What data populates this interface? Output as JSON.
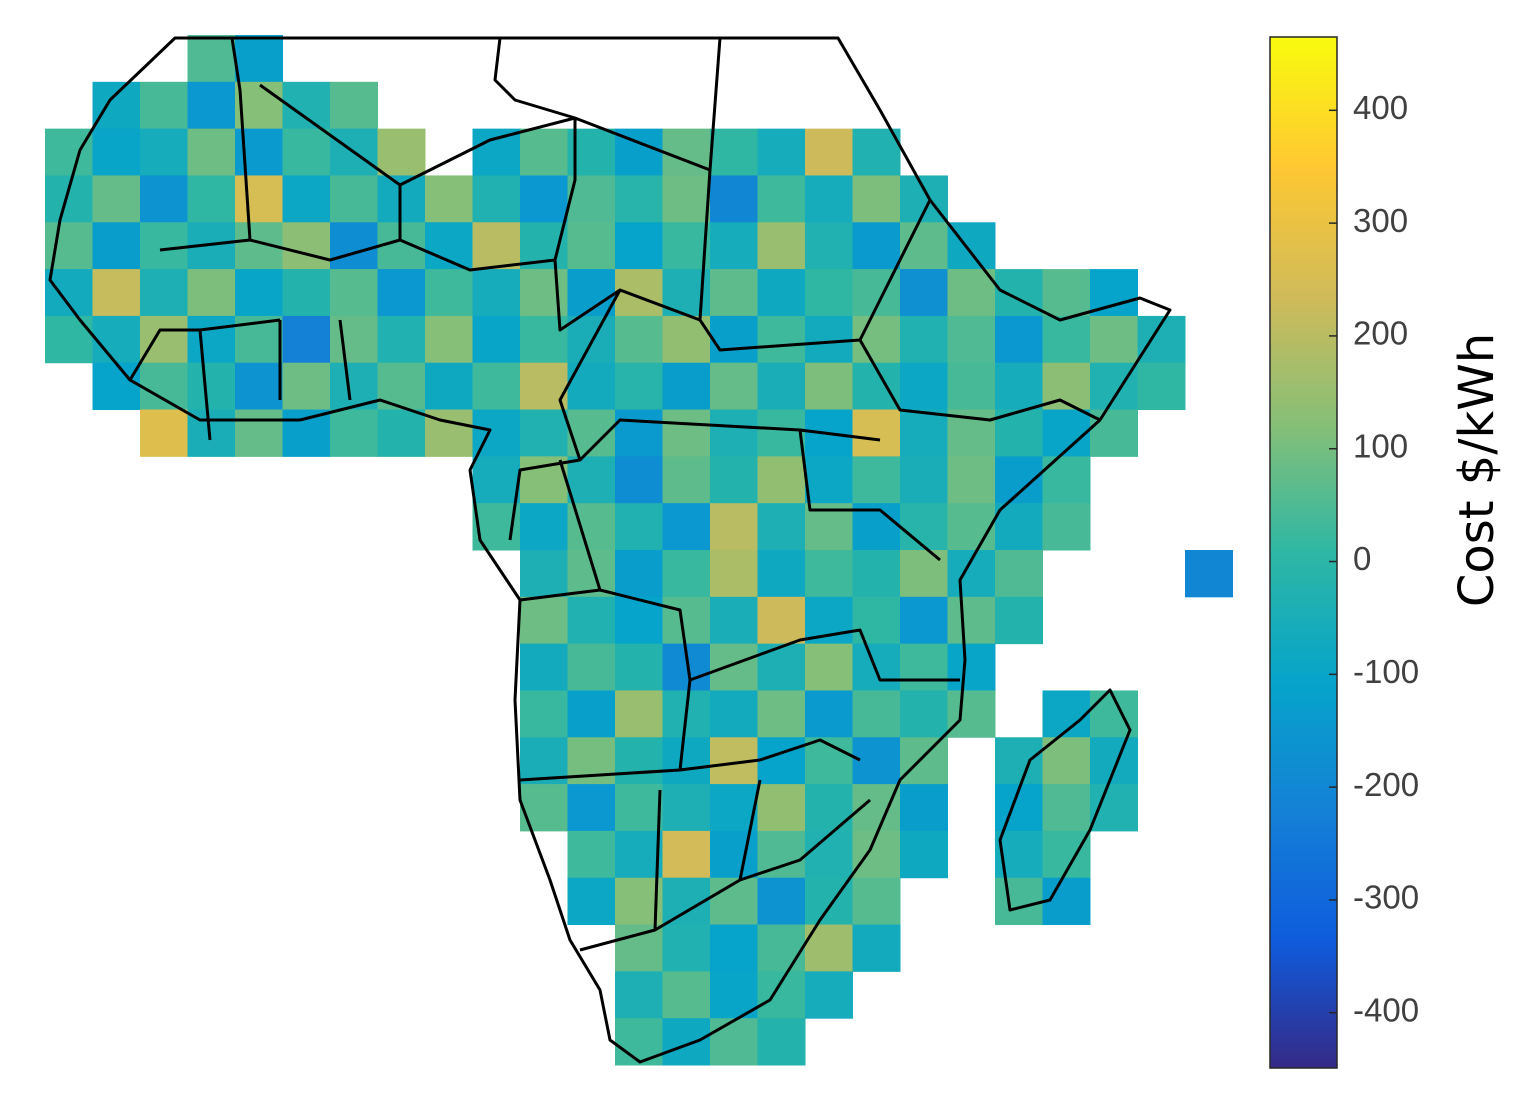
{
  "chart_data": {
    "type": "heatmap",
    "colormap": "parula",
    "clim": [
      -449,
      465
    ],
    "colorbar_label": "Cost $/kWh",
    "colorbar_ticks": [
      -400,
      -300,
      -200,
      -100,
      0,
      100,
      200,
      300,
      400
    ],
    "grid": [
      [
        null,
        null,
        null,
        50,
        -120,
        null,
        null,
        null,
        null,
        null,
        null,
        null,
        null,
        null,
        null,
        null,
        null,
        null,
        null,
        null,
        null,
        null,
        null,
        null,
        null
      ],
      [
        null,
        -80,
        40,
        -150,
        120,
        -30,
        60,
        null,
        null,
        null,
        null,
        null,
        null,
        null,
        null,
        null,
        null,
        null,
        null,
        null,
        null,
        null,
        null,
        null,
        null
      ],
      [
        30,
        -100,
        -60,
        90,
        -140,
        20,
        -40,
        150,
        null,
        -90,
        60,
        -20,
        -120,
        80,
        10,
        -60,
        230,
        -30,
        null,
        null,
        null,
        null,
        null,
        null,
        null
      ],
      [
        -20,
        80,
        -160,
        10,
        250,
        -90,
        40,
        -70,
        120,
        -30,
        -150,
        50,
        -10,
        90,
        -200,
        30,
        -60,
        110,
        -40,
        null,
        null,
        null,
        null,
        null,
        null
      ],
      [
        60,
        -130,
        20,
        -50,
        70,
        130,
        -180,
        40,
        -90,
        200,
        -20,
        60,
        -110,
        20,
        -60,
        150,
        -30,
        -140,
        70,
        -80,
        null,
        null,
        null,
        null,
        null
      ],
      [
        -70,
        220,
        -40,
        110,
        -100,
        -20,
        60,
        -150,
        30,
        -60,
        90,
        -130,
        180,
        -40,
        70,
        -80,
        10,
        40,
        -170,
        90,
        -20,
        60,
        -110,
        null,
        null
      ],
      [
        10,
        -60,
        150,
        -90,
        40,
        -220,
        80,
        -30,
        120,
        -100,
        20,
        -50,
        60,
        140,
        -120,
        30,
        -70,
        100,
        -30,
        50,
        -150,
        20,
        90,
        -40,
        null
      ],
      [
        null,
        -110,
        40,
        -20,
        -160,
        90,
        -40,
        60,
        -80,
        30,
        200,
        -70,
        -10,
        -130,
        80,
        -50,
        110,
        -20,
        -90,
        40,
        -60,
        130,
        -30,
        10,
        null
      ],
      [
        null,
        null,
        270,
        -50,
        80,
        -120,
        30,
        -20,
        150,
        -90,
        -30,
        60,
        -140,
        90,
        -40,
        20,
        -110,
        250,
        -60,
        80,
        -20,
        -100,
        40,
        null,
        null
      ],
      [
        null,
        null,
        null,
        null,
        null,
        null,
        null,
        null,
        null,
        -60,
        120,
        -40,
        -180,
        70,
        -20,
        140,
        -90,
        30,
        -50,
        90,
        -130,
        20,
        null,
        null,
        null
      ],
      [
        null,
        null,
        null,
        null,
        null,
        null,
        null,
        null,
        null,
        30,
        -90,
        60,
        -30,
        -150,
        200,
        -40,
        80,
        -120,
        -10,
        60,
        -70,
        40,
        null,
        null,
        null
      ],
      [
        null,
        null,
        null,
        null,
        null,
        null,
        null,
        null,
        null,
        null,
        -40,
        70,
        -130,
        20,
        180,
        -80,
        30,
        -20,
        110,
        -60,
        50,
        null,
        null,
        null,
        -200
      ],
      [
        null,
        null,
        null,
        null,
        null,
        null,
        null,
        null,
        null,
        null,
        90,
        -30,
        -110,
        60,
        -50,
        230,
        -90,
        10,
        -150,
        70,
        -20,
        null,
        null,
        null,
        null
      ],
      [
        null,
        null,
        null,
        null,
        null,
        null,
        null,
        null,
        null,
        null,
        -70,
        40,
        -20,
        -190,
        80,
        -40,
        120,
        -60,
        30,
        -100,
        null,
        null,
        null,
        null,
        null
      ],
      [
        null,
        null,
        null,
        null,
        null,
        null,
        null,
        null,
        null,
        null,
        20,
        -120,
        150,
        -30,
        -70,
        90,
        -140,
        40,
        -20,
        60,
        null,
        -90,
        30,
        null,
        null
      ],
      [
        null,
        null,
        null,
        null,
        null,
        null,
        null,
        null,
        null,
        null,
        -50,
        100,
        -20,
        -80,
        210,
        -110,
        30,
        -160,
        70,
        null,
        -40,
        110,
        -70,
        null,
        null
      ],
      [
        null,
        null,
        null,
        null,
        null,
        null,
        null,
        null,
        null,
        null,
        60,
        -150,
        30,
        -40,
        -90,
        140,
        -20,
        80,
        -130,
        null,
        -110,
        50,
        -30,
        null,
        null
      ],
      [
        null,
        null,
        null,
        null,
        null,
        null,
        null,
        null,
        null,
        null,
        null,
        30,
        -60,
        240,
        -120,
        50,
        -30,
        90,
        -80,
        null,
        -60,
        20,
        null,
        null,
        null
      ],
      [
        null,
        null,
        null,
        null,
        null,
        null,
        null,
        null,
        null,
        null,
        null,
        -90,
        120,
        -40,
        70,
        -160,
        -20,
        60,
        null,
        null,
        40,
        -130,
        null,
        null,
        null
      ],
      [
        null,
        null,
        null,
        null,
        null,
        null,
        null,
        null,
        null,
        null,
        null,
        null,
        80,
        -30,
        -110,
        40,
        160,
        -70,
        null,
        null,
        null,
        null,
        null,
        null,
        null
      ],
      [
        null,
        null,
        null,
        null,
        null,
        null,
        null,
        null,
        null,
        null,
        null,
        null,
        -40,
        60,
        -100,
        20,
        -60,
        null,
        null,
        null,
        null,
        null,
        null,
        null,
        null
      ],
      [
        null,
        null,
        null,
        null,
        null,
        null,
        null,
        null,
        null,
        null,
        null,
        null,
        30,
        -80,
        50,
        -20,
        null,
        null,
        null,
        null,
        null,
        null,
        null,
        null,
        null
      ]
    ]
  }
}
